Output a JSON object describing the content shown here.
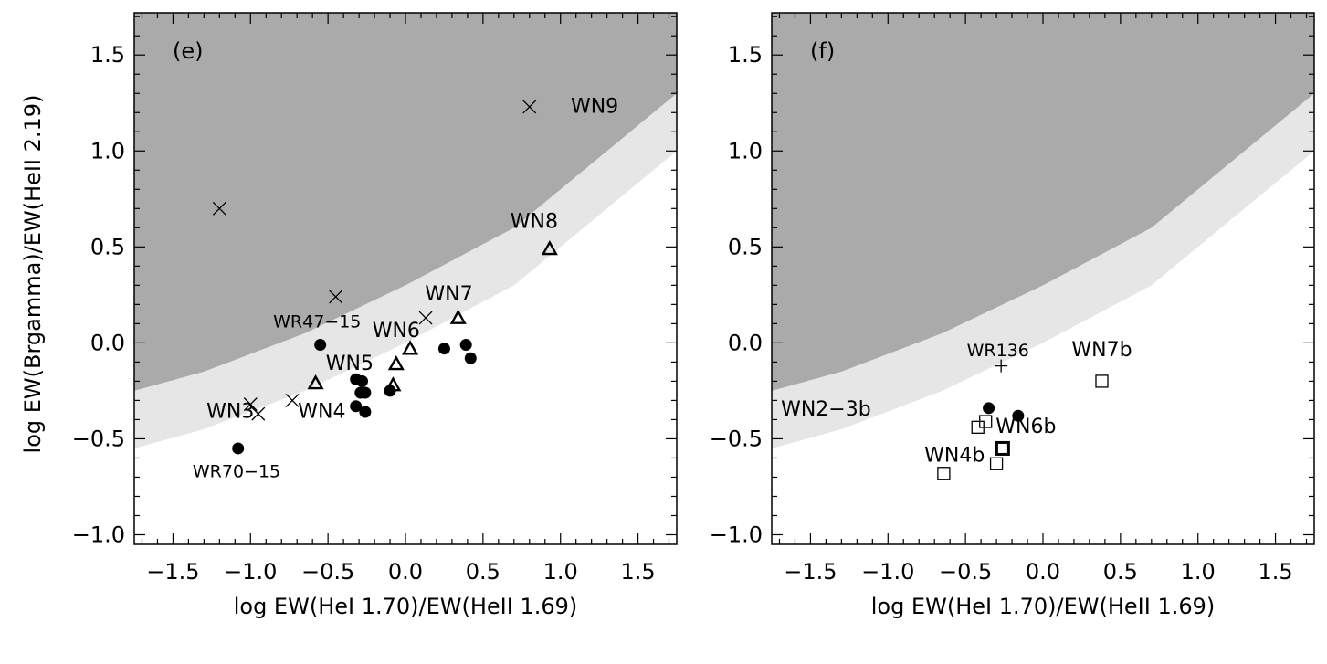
{
  "chart_data": [
    {
      "type": "scatter",
      "panel_label": "(e)",
      "xlabel": "log EW(HeI 1.70)/EW(HeII 1.69)",
      "ylabel": "log EW(Brgamma)/EW(HeII 2.19)",
      "xlim": [
        -1.75,
        1.75
      ],
      "ylim": [
        -1.05,
        1.72
      ],
      "xticks": [
        -1.5,
        -1.0,
        -0.5,
        0.0,
        0.5,
        1.0,
        1.5
      ],
      "xtick_labels": [
        "−1.5",
        "−1.0",
        "−0.5",
        "0.0",
        "0.5",
        "1.0",
        "1.5"
      ],
      "yticks": [
        -1.0,
        -0.5,
        0.0,
        0.5,
        1.0,
        1.5
      ],
      "ytick_labels": [
        "−1.0",
        "−0.5",
        "0.0",
        "0.5",
        "1.0",
        "1.5"
      ],
      "regions": [
        {
          "fill": "#aaaaaa",
          "boundary": [
            [
              -1.75,
              -0.25
            ],
            [
              -1.3,
              -0.15
            ],
            [
              -0.65,
              0.05
            ],
            [
              0.0,
              0.3
            ],
            [
              0.7,
              0.6
            ],
            [
              1.75,
              1.3
            ]
          ]
        },
        {
          "fill": "#e6e6e6",
          "boundary": [
            [
              -1.75,
              -0.55
            ],
            [
              -1.3,
              -0.45
            ],
            [
              -0.65,
              -0.25
            ],
            [
              0.0,
              0.0
            ],
            [
              0.7,
              0.3
            ],
            [
              1.75,
              1.0
            ]
          ]
        }
      ],
      "series": [
        {
          "marker": "x",
          "points": [
            [
              -1.2,
              0.7
            ],
            [
              -0.45,
              0.24
            ],
            [
              0.8,
              1.23
            ],
            [
              0.13,
              0.13
            ],
            [
              -1.0,
              -0.32
            ],
            [
              -0.95,
              -0.37
            ],
            [
              -0.73,
              -0.3
            ]
          ]
        },
        {
          "marker": "triangle",
          "points": [
            [
              -0.58,
              -0.21
            ],
            [
              -0.06,
              -0.11
            ],
            [
              0.03,
              -0.03
            ],
            [
              -0.08,
              -0.22
            ],
            [
              0.34,
              0.13
            ],
            [
              0.93,
              0.49
            ]
          ]
        },
        {
          "marker": "filled-circle",
          "points": [
            [
              -0.55,
              -0.01
            ],
            [
              -1.08,
              -0.55
            ],
            [
              -0.32,
              -0.19
            ],
            [
              -0.28,
              -0.2
            ],
            [
              -0.29,
              -0.26
            ],
            [
              -0.26,
              -0.26
            ],
            [
              -0.32,
              -0.33
            ],
            [
              -0.26,
              -0.36
            ],
            [
              -0.1,
              -0.25
            ],
            [
              0.25,
              -0.03
            ],
            [
              0.39,
              -0.01
            ],
            [
              0.42,
              -0.08
            ]
          ]
        }
      ],
      "annotations": [
        {
          "text": "WN9",
          "x": 1.22,
          "y": 1.2,
          "size": 22
        },
        {
          "text": "WN8",
          "x": 0.83,
          "y": 0.6,
          "size": 22
        },
        {
          "text": "WN7",
          "x": 0.28,
          "y": 0.22,
          "size": 22
        },
        {
          "text": "WN6",
          "x": -0.06,
          "y": 0.03,
          "size": 22
        },
        {
          "text": "WN5",
          "x": -0.36,
          "y": -0.14,
          "size": 22
        },
        {
          "text": "WN4",
          "x": -0.54,
          "y": -0.39,
          "size": 22
        },
        {
          "text": "WN3",
          "x": -1.13,
          "y": -0.39,
          "size": 22
        },
        {
          "text": "WR47−15",
          "x": -0.57,
          "y": 0.08,
          "size": 19
        },
        {
          "text": "WR70−15",
          "x": -1.09,
          "y": -0.7,
          "size": 19
        }
      ]
    },
    {
      "type": "scatter",
      "panel_label": "(f)",
      "xlabel": "log EW(HeI 1.70)/EW(HeII 1.69)",
      "ylabel": "",
      "xlim": [
        -1.75,
        1.75
      ],
      "ylim": [
        -1.05,
        1.72
      ],
      "xticks": [
        -1.5,
        -1.0,
        -0.5,
        0.0,
        0.5,
        1.0,
        1.5
      ],
      "xtick_labels": [
        "−1.5",
        "−1.0",
        "−0.5",
        "0.0",
        "0.5",
        "1.0",
        "1.5"
      ],
      "yticks": [
        -1.0,
        -0.5,
        0.0,
        0.5,
        1.0,
        1.5
      ],
      "ytick_labels": [
        "−1.0",
        "−0.5",
        "0.0",
        "0.5",
        "1.0",
        "1.5"
      ],
      "regions": [
        {
          "fill": "#aaaaaa",
          "boundary": [
            [
              -1.75,
              -0.25
            ],
            [
              -1.3,
              -0.15
            ],
            [
              -0.65,
              0.05
            ],
            [
              0.0,
              0.3
            ],
            [
              0.7,
              0.6
            ],
            [
              1.75,
              1.3
            ]
          ]
        },
        {
          "fill": "#e6e6e6",
          "boundary": [
            [
              -1.75,
              -0.55
            ],
            [
              -1.3,
              -0.45
            ],
            [
              -0.65,
              -0.25
            ],
            [
              0.0,
              0.0
            ],
            [
              0.7,
              0.3
            ],
            [
              1.75,
              1.0
            ]
          ]
        }
      ],
      "series": [
        {
          "marker": "plus",
          "points": [
            [
              -0.27,
              -0.12
            ]
          ]
        },
        {
          "marker": "filled-circle",
          "points": [
            [
              -0.35,
              -0.34
            ],
            [
              -0.16,
              -0.38
            ]
          ]
        },
        {
          "marker": "square",
          "points": [
            [
              -0.42,
              -0.44
            ],
            [
              -0.37,
              -0.41
            ],
            [
              -0.64,
              -0.68
            ],
            [
              -0.3,
              -0.63
            ],
            [
              0.38,
              -0.2
            ]
          ]
        },
        {
          "marker": "square-bold",
          "points": [
            [
              -0.26,
              -0.55
            ]
          ]
        }
      ],
      "annotations": [
        {
          "text": "WR136",
          "x": -0.29,
          "y": -0.07,
          "size": 19
        },
        {
          "text": "WN7b",
          "x": 0.38,
          "y": -0.07,
          "size": 22
        },
        {
          "text": "WN2−3b",
          "x": -1.4,
          "y": -0.38,
          "size": 22
        },
        {
          "text": "WN6b",
          "x": -0.11,
          "y": -0.47,
          "size": 22
        },
        {
          "text": "WN4b",
          "x": -0.57,
          "y": -0.62,
          "size": 22
        }
      ]
    }
  ]
}
